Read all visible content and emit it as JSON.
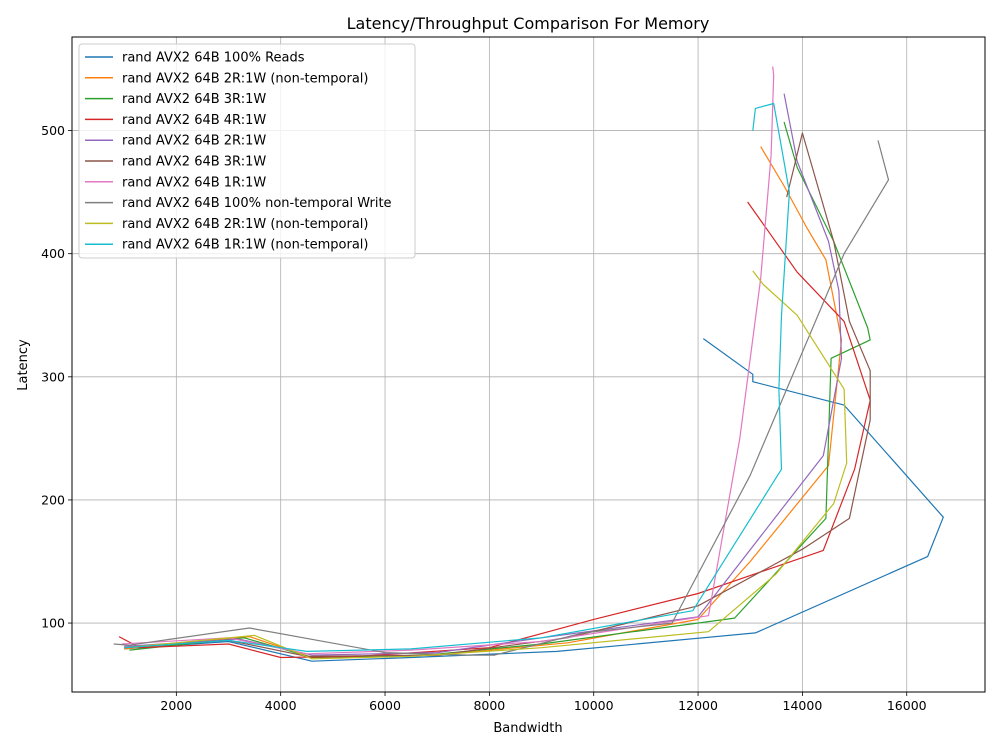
{
  "chart_data": {
    "type": "line",
    "title": "Latency/Throughput Comparison For Memory",
    "xlabel": "Bandwidth",
    "ylabel": "Latency",
    "xlim": [
      0,
      17500
    ],
    "ylim": [
      44,
      576
    ],
    "xticks": [
      "2000",
      "4000",
      "6000",
      "8000",
      "10000",
      "12000",
      "14000",
      "16000"
    ],
    "xtick_values": [
      2000,
      4000,
      6000,
      8000,
      10000,
      12000,
      14000,
      16000
    ],
    "yticks": [
      "100",
      "200",
      "300",
      "400",
      "500"
    ],
    "ytick_values": [
      100,
      200,
      300,
      400,
      500
    ],
    "grid": true,
    "legend_position": "top-left",
    "series": [
      {
        "name": "rand AVX2 64B 100% Reads",
        "color": "#1f77b4",
        "points": [
          [
            1000,
            79
          ],
          [
            3000,
            85
          ],
          [
            4600,
            69
          ],
          [
            6500,
            72
          ],
          [
            9300,
            77
          ],
          [
            13100,
            92
          ],
          [
            16400,
            154
          ],
          [
            16700,
            186
          ],
          [
            14800,
            277
          ],
          [
            13050,
            296
          ],
          [
            13050,
            302
          ],
          [
            12100,
            331
          ]
        ]
      },
      {
        "name": "rand AVX2 64B 2R:1W (non-temporal)",
        "color": "#ff7f0e",
        "points": [
          [
            1000,
            79
          ],
          [
            3400,
            89
          ],
          [
            4600,
            72
          ],
          [
            7000,
            74
          ],
          [
            9500,
            84
          ],
          [
            12000,
            103
          ],
          [
            13000,
            150
          ],
          [
            14500,
            228
          ],
          [
            14750,
            330
          ],
          [
            14450,
            395
          ],
          [
            14100,
            420
          ],
          [
            13650,
            455
          ],
          [
            13200,
            487
          ]
        ]
      },
      {
        "name": "rand AVX2 64B 3R:1W",
        "color": "#2ca02c",
        "points": [
          [
            1100,
            78
          ],
          [
            3300,
            88
          ],
          [
            4600,
            72
          ],
          [
            6800,
            74
          ],
          [
            9000,
            83
          ],
          [
            12700,
            104
          ],
          [
            14450,
            185
          ],
          [
            14550,
            315
          ],
          [
            15300,
            330
          ],
          [
            15250,
            340
          ],
          [
            14600,
            410
          ],
          [
            13900,
            470
          ],
          [
            13650,
            507
          ]
        ]
      },
      {
        "name": "rand AVX2 64B 4R:1W",
        "color": "#d62728",
        "points": [
          [
            900,
            89
          ],
          [
            1300,
            80
          ],
          [
            3000,
            83
          ],
          [
            4000,
            72
          ],
          [
            5500,
            73
          ],
          [
            8000,
            80
          ],
          [
            10000,
            103
          ],
          [
            12000,
            124
          ],
          [
            14400,
            159
          ],
          [
            15000,
            225
          ],
          [
            15300,
            281
          ],
          [
            14800,
            345
          ],
          [
            13900,
            385
          ],
          [
            13300,
            421
          ],
          [
            12950,
            442
          ]
        ]
      },
      {
        "name": "rand AVX2 64B 2R:1W",
        "color": "#9467bd",
        "points": [
          [
            1000,
            81
          ],
          [
            3200,
            87
          ],
          [
            4600,
            74
          ],
          [
            7000,
            76
          ],
          [
            9000,
            88
          ],
          [
            12000,
            105
          ],
          [
            14400,
            236
          ],
          [
            14750,
            315
          ],
          [
            14700,
            370
          ],
          [
            14500,
            410
          ],
          [
            13900,
            475
          ],
          [
            13650,
            530
          ]
        ]
      },
      {
        "name": "rand AVX2 64B 3R:1W",
        "color": "#8c564b",
        "points": [
          [
            1000,
            80
          ],
          [
            3000,
            86
          ],
          [
            4500,
            73
          ],
          [
            7000,
            74
          ],
          [
            9500,
            88
          ],
          [
            12000,
            114
          ],
          [
            14000,
            160
          ],
          [
            14900,
            185
          ],
          [
            15300,
            265
          ],
          [
            15300,
            305
          ],
          [
            14900,
            345
          ],
          [
            14600,
            410
          ],
          [
            14000,
            498
          ],
          [
            13700,
            446
          ]
        ]
      },
      {
        "name": "rand AVX2 64B 1R:1W",
        "color": "#e377c2",
        "points": [
          [
            950,
            83
          ],
          [
            3000,
            88
          ],
          [
            4500,
            75
          ],
          [
            6500,
            78
          ],
          [
            9000,
            85
          ],
          [
            12200,
            106
          ],
          [
            12800,
            250
          ],
          [
            13200,
            380
          ],
          [
            13400,
            480
          ],
          [
            13450,
            545
          ],
          [
            13430,
            552
          ]
        ]
      },
      {
        "name": "rand AVX2 64B 100% non-temporal Write",
        "color": "#7f7f7f",
        "points": [
          [
            800,
            83
          ],
          [
            1100,
            82
          ],
          [
            1900,
            87
          ],
          [
            3400,
            96
          ],
          [
            4700,
            86
          ],
          [
            6000,
            76
          ],
          [
            7600,
            74
          ],
          [
            8100,
            74
          ],
          [
            9800,
            92
          ],
          [
            11500,
            100
          ],
          [
            13000,
            220
          ],
          [
            14800,
            400
          ],
          [
            15650,
            460
          ],
          [
            15450,
            492
          ]
        ]
      },
      {
        "name": "rand AVX2 64B 2R:1W (non-temporal)",
        "color": "#bcbd22",
        "points": [
          [
            1000,
            80
          ],
          [
            3500,
            90
          ],
          [
            4600,
            71
          ],
          [
            6500,
            73
          ],
          [
            9000,
            80
          ],
          [
            12200,
            93
          ],
          [
            13500,
            140
          ],
          [
            14600,
            197
          ],
          [
            14850,
            230
          ],
          [
            14800,
            290
          ],
          [
            13900,
            350
          ],
          [
            13250,
            375
          ],
          [
            13050,
            386
          ]
        ]
      },
      {
        "name": "rand AVX2 64B 1R:1W (non-temporal)",
        "color": "#17becf",
        "points": [
          [
            1000,
            80
          ],
          [
            3000,
            86
          ],
          [
            4500,
            77
          ],
          [
            6500,
            79
          ],
          [
            9000,
            88
          ],
          [
            11900,
            110
          ],
          [
            13600,
            225
          ],
          [
            13550,
            290
          ],
          [
            13600,
            350
          ],
          [
            13750,
            450
          ],
          [
            13450,
            522
          ],
          [
            13100,
            518
          ],
          [
            13050,
            500
          ]
        ]
      }
    ]
  }
}
